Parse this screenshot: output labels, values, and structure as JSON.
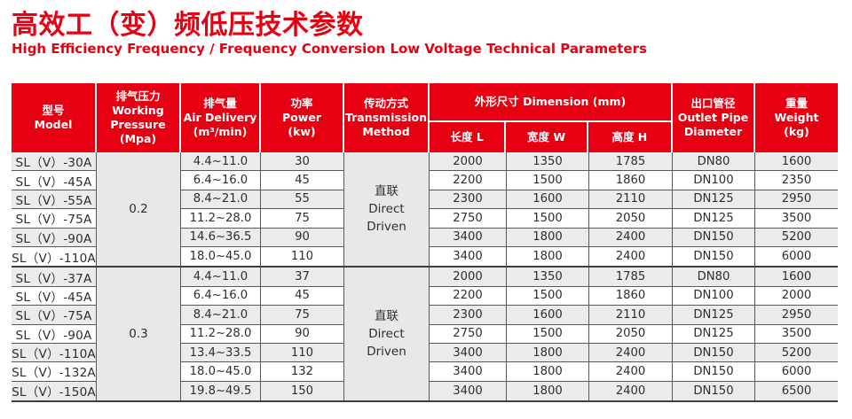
{
  "title": {
    "zh": "高效工（变）频低压技术参数",
    "en": "High Efficiency Frequency / Frequency Conversion Low Voltage Technical Parameters"
  },
  "colors": {
    "accent_red": "#e60012",
    "header_text": "#ffffff",
    "stripe_gray": "#ebebeb",
    "merged_cell_gray": "#e8e8e8",
    "grid_line": "#595959",
    "body_text": "#2e2e2e"
  },
  "table": {
    "headers": {
      "model": "型号\nModel",
      "pressure": "排气压力\nWorking\nPressure\n(Mpa)",
      "air_delivery": "排气量\nAir Delivery\n(m³/min)",
      "power": "功率\nPower\n(kw)",
      "transmission": "传动方式\nTransmission\nMethod",
      "dimension": "外形尺寸 Dimension (mm)",
      "dimension_sub": {
        "length": "长度 L",
        "width": "宽度 W",
        "height": "高度 H"
      },
      "outlet": "出口管径\nOutlet Pipe\nDiameter",
      "weight": "重量\nWeight\n(kg)"
    },
    "groups": [
      {
        "pressure": "0.2",
        "transmission": "直联\nDirect\nDriven",
        "rows": [
          {
            "model": "SL（V）-30A",
            "air": "4.4~11.0",
            "power": "30",
            "l": "2000",
            "w": "1350",
            "h": "1785",
            "outlet": "DN80",
            "weight": "1600"
          },
          {
            "model": "SL（V）-45A",
            "air": "6.4~16.0",
            "power": "45",
            "l": "2200",
            "w": "1500",
            "h": "1860",
            "outlet": "DN100",
            "weight": "2350"
          },
          {
            "model": "SL（V）-55A",
            "air": "8.4~21.0",
            "power": "55",
            "l": "2300",
            "w": "1600",
            "h": "2110",
            "outlet": "DN125",
            "weight": "2950"
          },
          {
            "model": "SL（V）-75A",
            "air": "11.2~28.0",
            "power": "75",
            "l": "2750",
            "w": "1500",
            "h": "2050",
            "outlet": "DN125",
            "weight": "3500"
          },
          {
            "model": "SL（V）-90A",
            "air": "14.6~36.5",
            "power": "90",
            "l": "3400",
            "w": "1800",
            "h": "2400",
            "outlet": "DN150",
            "weight": "5200"
          },
          {
            "model": "SL（V）-110A",
            "air": "18.0~45.0",
            "power": "110",
            "l": "3400",
            "w": "1800",
            "h": "2400",
            "outlet": "DN150",
            "weight": "6000"
          }
        ]
      },
      {
        "pressure": "0.3",
        "transmission": "直联\nDirect\nDriven",
        "rows": [
          {
            "model": "SL（V）-37A",
            "air": "4.4~11.0",
            "power": "37",
            "l": "2000",
            "w": "1350",
            "h": "1785",
            "outlet": "DN80",
            "weight": "1600"
          },
          {
            "model": "SL（V）-45A",
            "air": "6.4~16.0",
            "power": "45",
            "l": "2200",
            "w": "1500",
            "h": "1860",
            "outlet": "DN100",
            "weight": "2000"
          },
          {
            "model": "SL（V）-75A",
            "air": "8.4~21.0",
            "power": "75",
            "l": "2300",
            "w": "1600",
            "h": "2110",
            "outlet": "DN125",
            "weight": "2950"
          },
          {
            "model": "SL（V）-90A",
            "air": "11.2~28.0",
            "power": "90",
            "l": "2750",
            "w": "1500",
            "h": "2050",
            "outlet": "DN125",
            "weight": "3500"
          },
          {
            "model": "SL（V）-110A",
            "air": "13.4~33.5",
            "power": "110",
            "l": "3400",
            "w": "1800",
            "h": "2400",
            "outlet": "DN150",
            "weight": "5200"
          },
          {
            "model": "SL（V）-132A",
            "air": "18.0~45.0",
            "power": "132",
            "l": "3400",
            "w": "1800",
            "h": "2400",
            "outlet": "DN150",
            "weight": "6000"
          },
          {
            "model": "SL（V）-150A",
            "air": "19.8~49.5",
            "power": "150",
            "l": "3400",
            "w": "1800",
            "h": "2400",
            "outlet": "DN150",
            "weight": "6500"
          }
        ]
      }
    ]
  }
}
